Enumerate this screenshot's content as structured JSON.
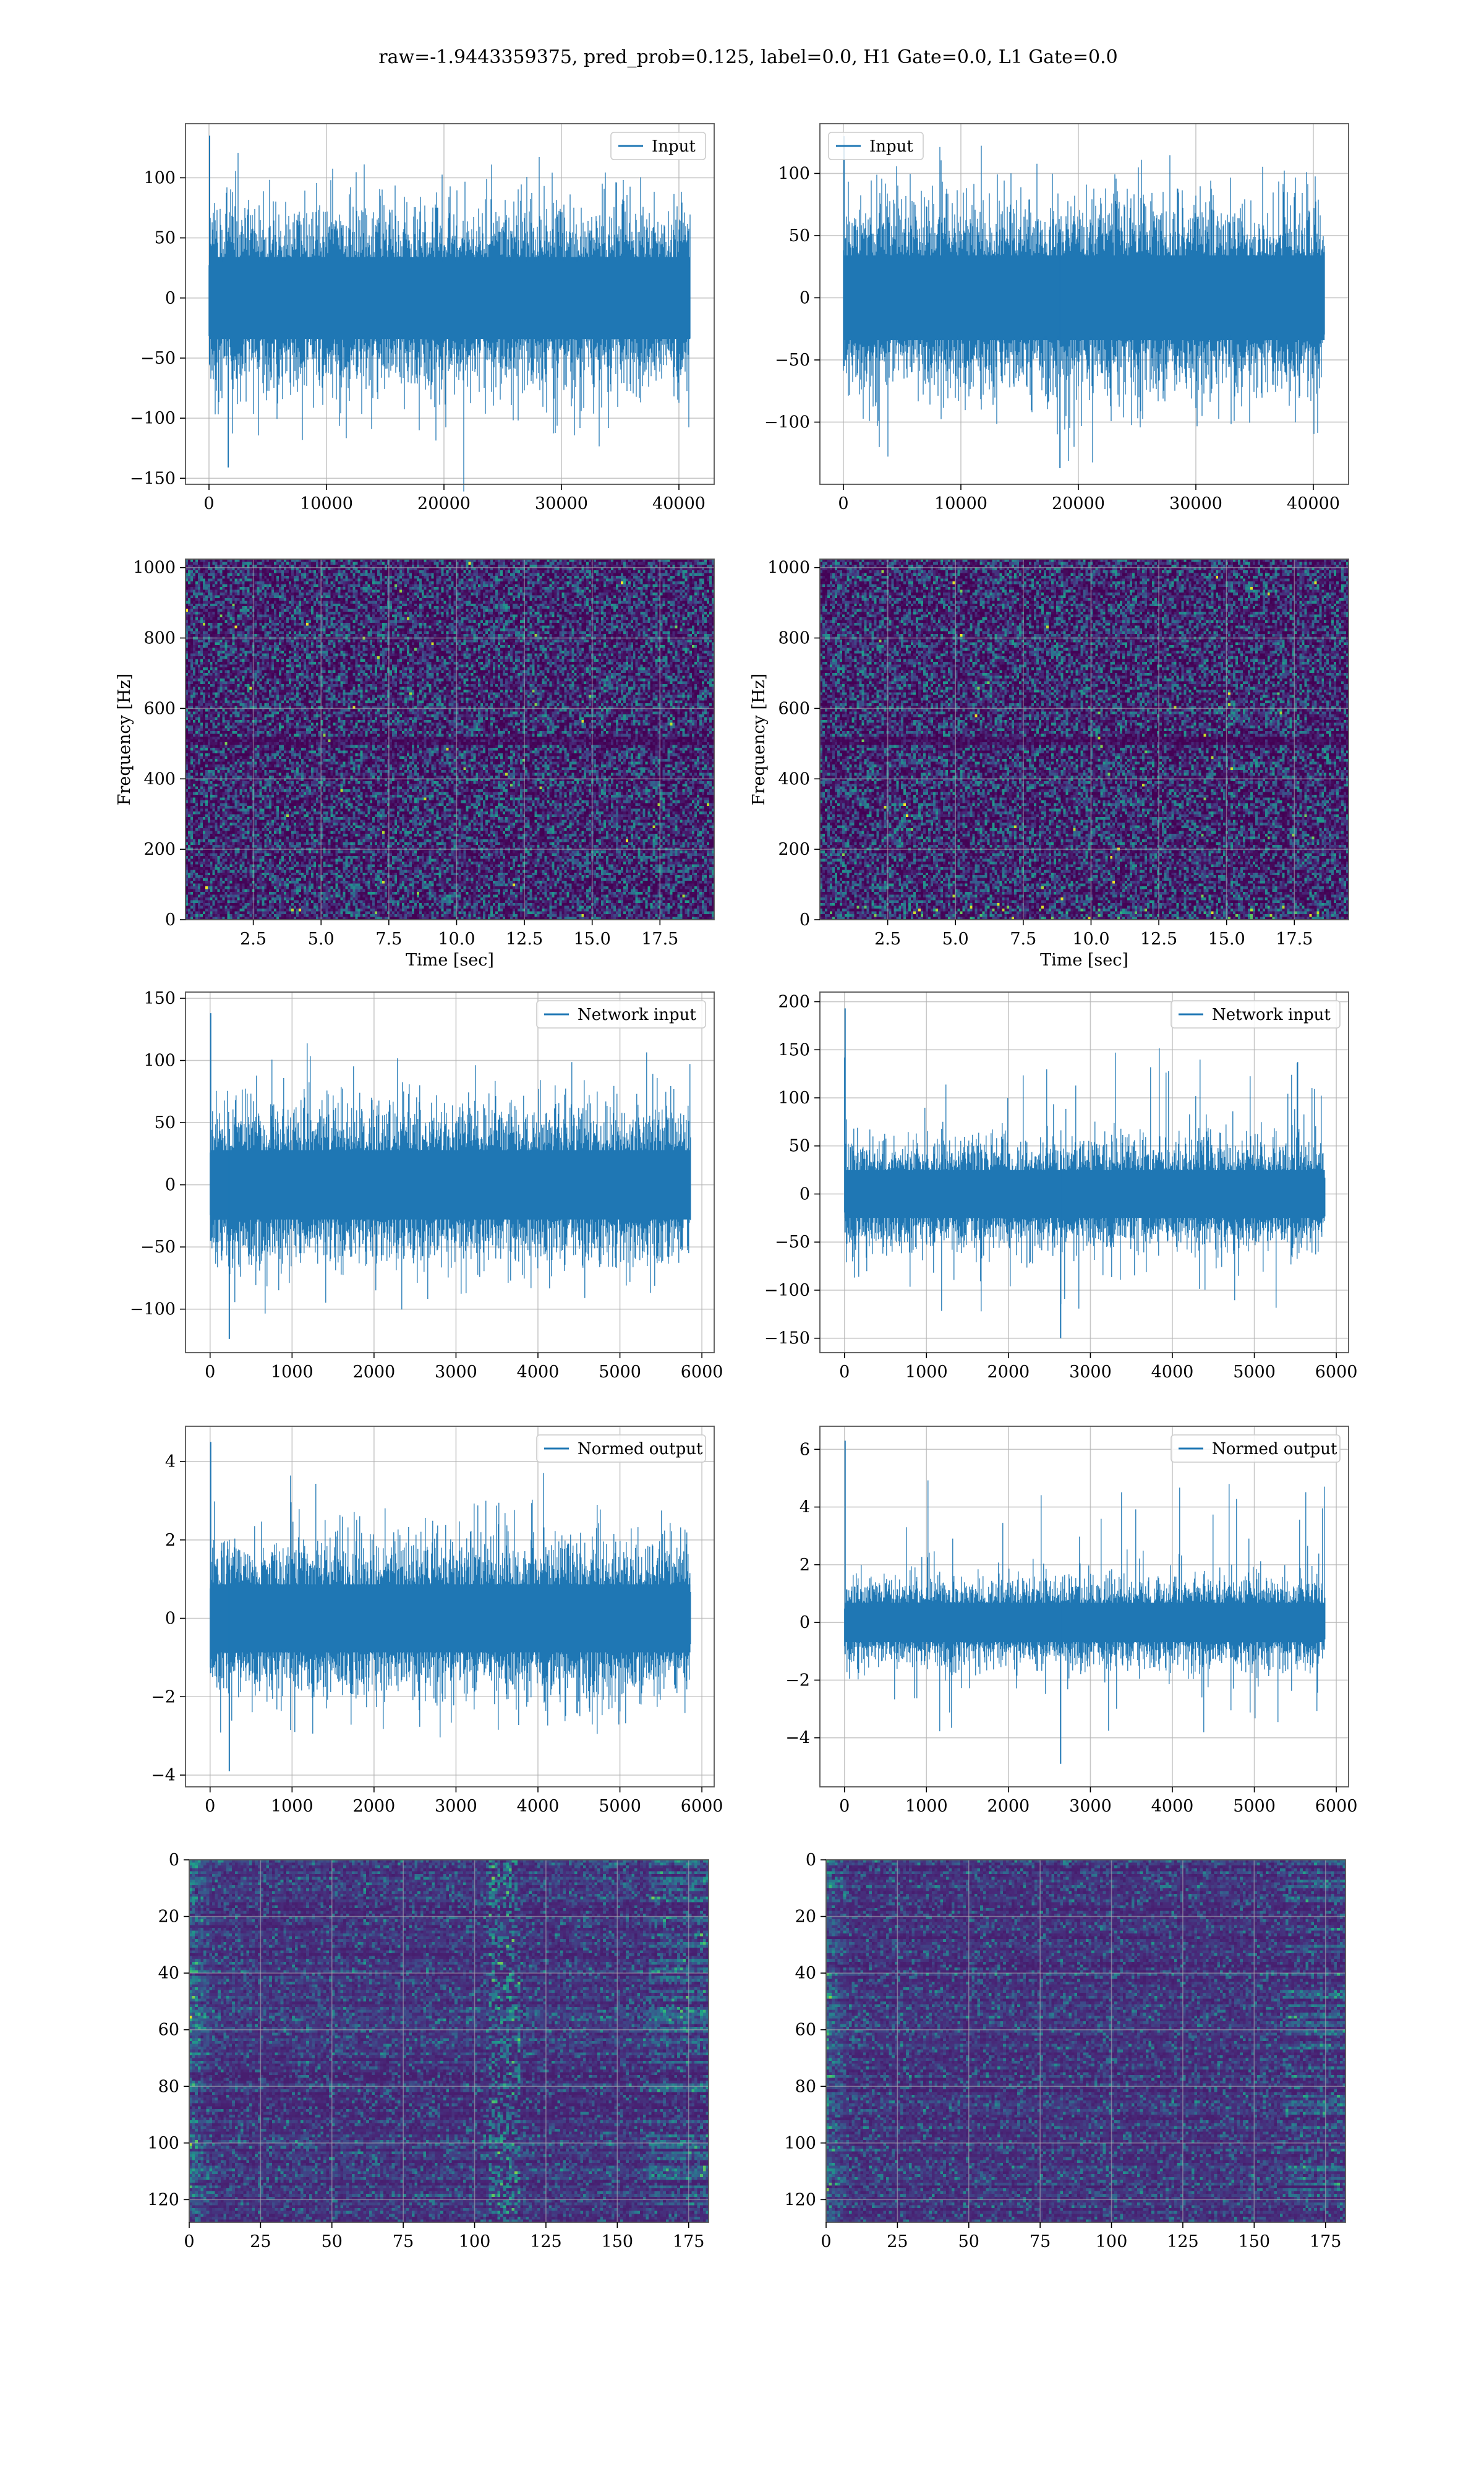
{
  "figure": {
    "title": "raw=-1.9443359375, pred_prob=0.125, label=0.0, H1 Gate=0.0, L1 Gate=0.0"
  },
  "colors": {
    "line": "#1f77b4",
    "grid": "#b0b0b0",
    "spine": "#555555"
  },
  "chart_data": [
    {
      "id": "input-h1",
      "type": "line",
      "series": [
        {
          "name": "Input"
        }
      ],
      "legend": "upper right",
      "xlim": [
        -2000,
        43000
      ],
      "ylim": [
        -155,
        145
      ],
      "xticks": [
        0,
        10000,
        20000,
        30000,
        40000
      ],
      "yticks": [
        -150,
        -100,
        -50,
        0,
        50,
        100
      ],
      "n_samples": 40960,
      "envelope": {
        "x_range": [
          0,
          40960
        ],
        "core": [
          -55,
          55
        ],
        "spikes_max": 135,
        "spikes_min": -141
      },
      "grid": true
    },
    {
      "id": "input-l1",
      "type": "line",
      "series": [
        {
          "name": "Input"
        }
      ],
      "legend": "upper left",
      "xlim": [
        -2000,
        43000
      ],
      "ylim": [
        -150,
        140
      ],
      "xticks": [
        0,
        10000,
        20000,
        30000,
        40000
      ],
      "yticks": [
        -100,
        -50,
        0,
        50,
        100
      ],
      "n_samples": 40960,
      "envelope": {
        "x_range": [
          0,
          40960
        ],
        "core": [
          -55,
          55
        ],
        "spikes_max": 130,
        "spikes_min": -137
      },
      "grid": true
    },
    {
      "id": "spectrogram-h1",
      "type": "heatmap",
      "colormap": "viridis",
      "xlim": [
        0,
        19.5
      ],
      "ylim": [
        0,
        1024
      ],
      "xticks": [
        2.5,
        5.0,
        7.5,
        10.0,
        12.5,
        15.0,
        17.5
      ],
      "yticks": [
        0,
        200,
        400,
        600,
        800,
        1000
      ],
      "xlabel": "Time [sec]",
      "ylabel": "Frequency [Hz]",
      "grid": true
    },
    {
      "id": "spectrogram-l1",
      "type": "heatmap",
      "colormap": "viridis",
      "xlim": [
        0,
        19.5
      ],
      "ylim": [
        0,
        1024
      ],
      "xticks": [
        2.5,
        5.0,
        7.5,
        10.0,
        12.5,
        15.0,
        17.5
      ],
      "yticks": [
        0,
        200,
        400,
        600,
        800,
        1000
      ],
      "xlabel": "Time [sec]",
      "ylabel": "Frequency [Hz]",
      "grid": true
    },
    {
      "id": "network-input-h1",
      "type": "line",
      "series": [
        {
          "name": "Network input"
        }
      ],
      "legend": "upper right",
      "xlim": [
        -300,
        6150
      ],
      "ylim": [
        -135,
        155
      ],
      "xticks": [
        0,
        1000,
        2000,
        3000,
        4000,
        5000,
        6000
      ],
      "yticks": [
        -100,
        -50,
        0,
        50,
        100,
        150
      ],
      "n_samples": 5860,
      "envelope": {
        "x_range": [
          0,
          5860
        ],
        "core": [
          -45,
          45
        ],
        "spikes_max": 138,
        "spikes_min": -124
      },
      "grid": true
    },
    {
      "id": "network-input-l1",
      "type": "line",
      "series": [
        {
          "name": "Network input"
        }
      ],
      "legend": "upper right",
      "xlim": [
        -300,
        6150
      ],
      "ylim": [
        -165,
        210
      ],
      "xticks": [
        0,
        1000,
        2000,
        3000,
        4000,
        5000,
        6000
      ],
      "yticks": [
        -150,
        -100,
        -50,
        0,
        50,
        100,
        150,
        200
      ],
      "n_samples": 5860,
      "envelope": {
        "x_range": [
          0,
          5860
        ],
        "core": [
          -40,
          40
        ],
        "spikes_max": 193,
        "spikes_min": -150
      },
      "grid": true
    },
    {
      "id": "normed-output-h1",
      "type": "line",
      "series": [
        {
          "name": "Normed output"
        }
      ],
      "legend": "upper right",
      "xlim": [
        -300,
        6150
      ],
      "ylim": [
        -4.3,
        4.9
      ],
      "xticks": [
        0,
        1000,
        2000,
        3000,
        4000,
        5000,
        6000
      ],
      "yticks": [
        -4,
        -2,
        0,
        2,
        4
      ],
      "n_samples": 5860,
      "envelope": {
        "x_range": [
          0,
          5860
        ],
        "core": [
          -1.4,
          1.4
        ],
        "spikes_max": 4.5,
        "spikes_min": -3.9
      },
      "grid": true
    },
    {
      "id": "normed-output-l1",
      "type": "line",
      "series": [
        {
          "name": "Normed output"
        }
      ],
      "legend": "upper right",
      "xlim": [
        -300,
        6150
      ],
      "ylim": [
        -5.7,
        6.8
      ],
      "xticks": [
        0,
        1000,
        2000,
        3000,
        4000,
        5000,
        6000
      ],
      "yticks": [
        -4,
        -2,
        0,
        2,
        4,
        6
      ],
      "n_samples": 5860,
      "envelope": {
        "x_range": [
          0,
          5860
        ],
        "core": [
          -1.1,
          1.1
        ],
        "spikes_max": 6.3,
        "spikes_min": -4.9
      },
      "grid": true
    },
    {
      "id": "features-h1",
      "type": "heatmap",
      "colormap": "viridis",
      "xlim": [
        0,
        182
      ],
      "ylim": [
        128,
        0
      ],
      "xticks": [
        0,
        25,
        50,
        75,
        100,
        125,
        150,
        175
      ],
      "yticks": [
        0,
        20,
        40,
        60,
        80,
        100,
        120
      ],
      "grid": true
    },
    {
      "id": "features-l1",
      "type": "heatmap",
      "colormap": "viridis",
      "xlim": [
        0,
        182
      ],
      "ylim": [
        128,
        0
      ],
      "xticks": [
        0,
        25,
        50,
        75,
        100,
        125,
        150,
        175
      ],
      "yticks": [
        0,
        20,
        40,
        60,
        80,
        100,
        120
      ],
      "grid": true
    }
  ]
}
